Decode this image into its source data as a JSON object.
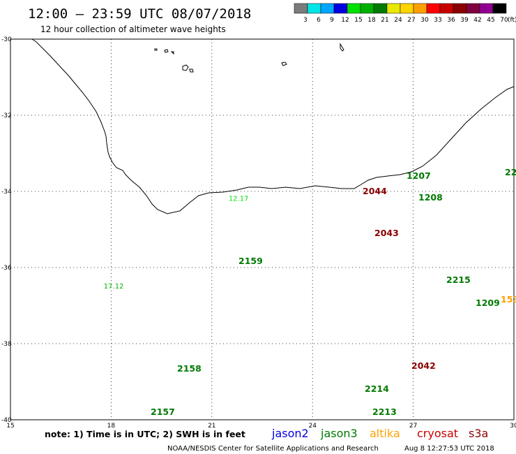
{
  "header": {
    "title": "12:00 – 23:59 UTC 08/07/2018",
    "subtitle": "12 hour collection of altimeter wave heights"
  },
  "color_scale": {
    "labels": [
      "3",
      "6",
      "9",
      "12",
      "15",
      "18",
      "21",
      "24",
      "27",
      "30",
      "33",
      "36",
      "39",
      "42",
      "45",
      "70",
      "(ft)"
    ],
    "colors": [
      "#7b7b7b",
      "#00e5e5",
      "#00a6ff",
      "#0000e0",
      "#00e000",
      "#00b000",
      "#007a00",
      "#e8e800",
      "#ffd400",
      "#ffa000",
      "#ff0000",
      "#c80000",
      "#8b0000",
      "#800040",
      "#900090",
      "#000000"
    ]
  },
  "axes": {
    "lon_labels": [
      "15",
      "18",
      "21",
      "24",
      "27",
      "30"
    ],
    "lat_labels": [
      "-30",
      "-32",
      "-34",
      "-36",
      "-38",
      "-40"
    ]
  },
  "tracks": [
    {
      "label": "1207",
      "color": "#007a00"
    },
    {
      "label": "1208",
      "color": "#007a00"
    },
    {
      "label": "2044",
      "color": "#8b0000"
    },
    {
      "label": "2043",
      "color": "#8b0000"
    },
    {
      "label": "2159",
      "color": "#007a00"
    },
    {
      "label": "2215",
      "color": "#007a00"
    },
    {
      "label": "1209",
      "color": "#007a00"
    },
    {
      "label": "2042",
      "color": "#8b0000"
    },
    {
      "label": "2158",
      "color": "#007a00"
    },
    {
      "label": "2214",
      "color": "#007a00"
    },
    {
      "label": "2213",
      "color": "#007a00"
    },
    {
      "label": "2157",
      "color": "#007a00"
    },
    {
      "label": "22",
      "color": "#007a00"
    },
    {
      "label": "153",
      "color": "#ffa000"
    }
  ],
  "readings": [
    {
      "t": "17.12",
      "c": "#00b000",
      "x": 17.78,
      "y": -36.55
    },
    {
      "t": "12.17",
      "c": "#00e000",
      "x": 21.5,
      "y": -34.25
    }
  ],
  "footer_line": {
    "note": "note: 1) Time is in UTC; 2) SWH is in feet",
    "satellites": [
      {
        "name": "jason2",
        "color": "#0000e0"
      },
      {
        "name": "jason3",
        "color": "#007a00"
      },
      {
        "name": "altika",
        "color": "#ffa000"
      },
      {
        "name": "cryosat",
        "color": "#c80000"
      },
      {
        "name": "s3a",
        "color": "#8b0000"
      }
    ]
  },
  "credit": "NOAA/NESDIS Center for Satellite Applications and Research",
  "timestamp": "Aug  8 12:27:53 UTC 2018"
}
